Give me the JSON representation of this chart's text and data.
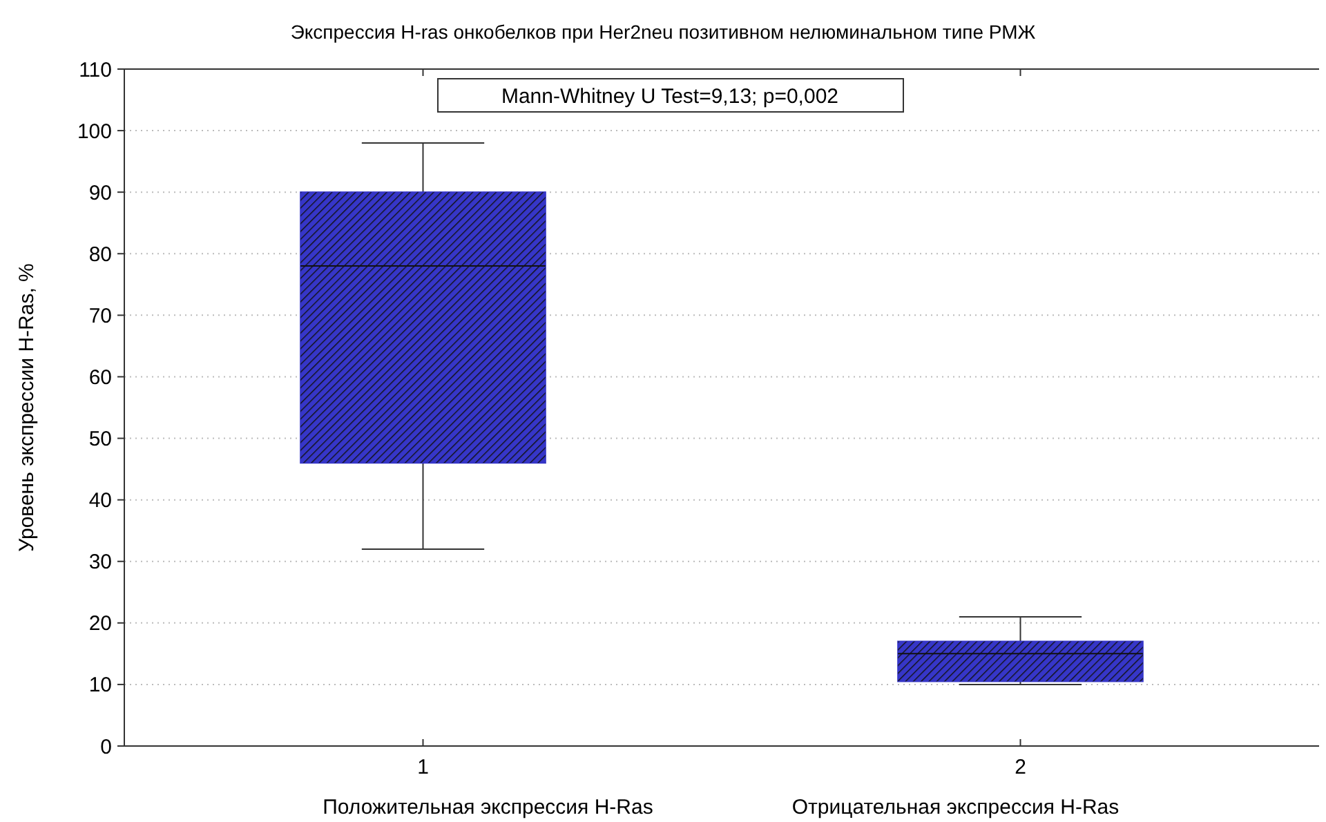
{
  "chart_data": {
    "type": "box",
    "title": "Экспрессия H-ras онкобелков при Her2neu позитивном нелюминальном типе РМЖ",
    "ylabel": "Уровень экспрессии H-Ras, %",
    "categories": [
      "1",
      "2"
    ],
    "series": [
      {
        "color": "#3636c8",
        "boxes": [
          {
            "low": 32,
            "q1": 46,
            "median": 78,
            "q3": 90,
            "high": 98
          },
          {
            "low": 10,
            "q1": 10.5,
            "median": 15,
            "q3": 17,
            "high": 21
          }
        ]
      }
    ],
    "ylim": [
      0,
      110
    ],
    "yticks": [
      0,
      10,
      20,
      30,
      40,
      50,
      60,
      70,
      80,
      90,
      100,
      110
    ],
    "grid": "y",
    "annotations": [
      "Mann-Whitney U Test=9,13; p=0,002",
      "Положительная экспрессия H-Ras",
      "Отрицательная экспрессия H-Ras"
    ]
  }
}
